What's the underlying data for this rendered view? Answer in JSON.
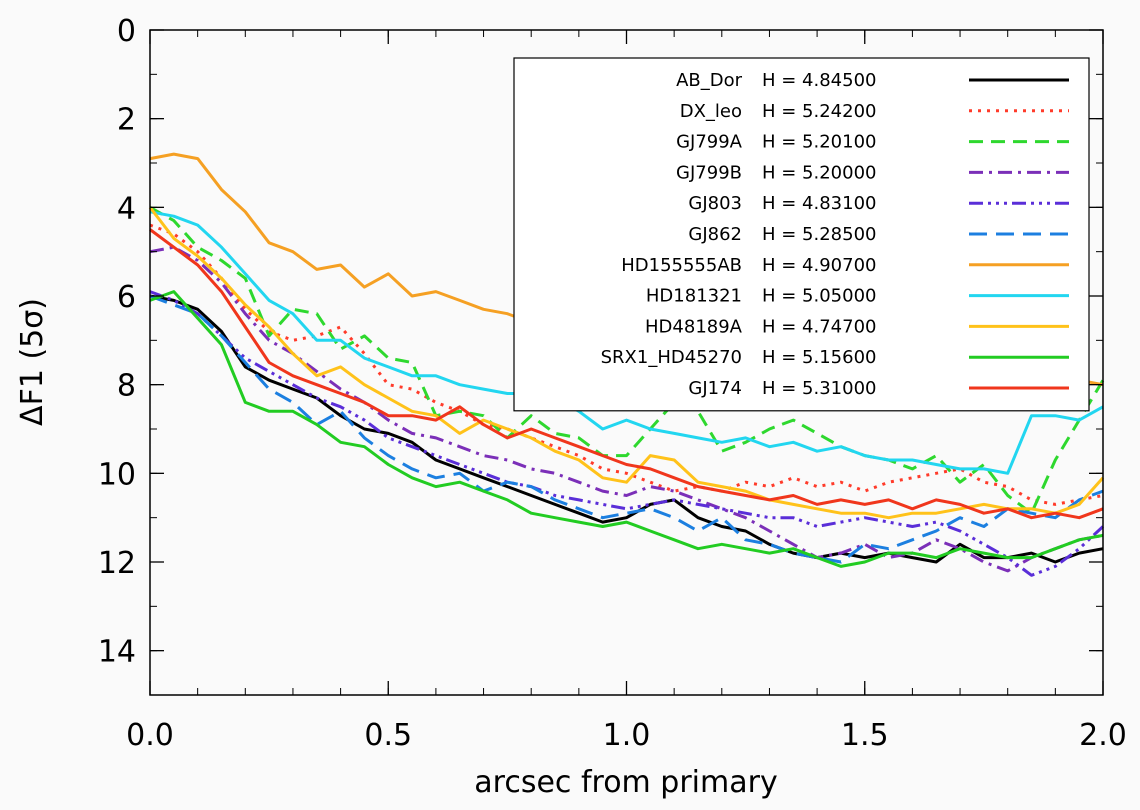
{
  "chart_data": {
    "type": "line",
    "xlabel": "arcsec from primary",
    "ylabel": "ΔF1 (5σ)",
    "xlim": [
      0.0,
      2.0
    ],
    "ylim": [
      15,
      0
    ],
    "y_inverted": true,
    "xticks": [
      "0.0",
      "0.5",
      "1.0",
      "1.5",
      "2.0"
    ],
    "yticks": [
      "0",
      "2",
      "4",
      "6",
      "8",
      "10",
      "12",
      "14"
    ],
    "legend_position": "top-right",
    "grid": false,
    "series": [
      {
        "name": "AB_Dor",
        "hmag": "H = 4.84500",
        "color": "#000000",
        "dash": "",
        "x": [
          0.0,
          0.05,
          0.1,
          0.15,
          0.2,
          0.25,
          0.3,
          0.35,
          0.4,
          0.45,
          0.5,
          0.55,
          0.6,
          0.65,
          0.7,
          0.75,
          0.8,
          0.85,
          0.9,
          0.95,
          1.0,
          1.05,
          1.1,
          1.15,
          1.2,
          1.25,
          1.3,
          1.35,
          1.4,
          1.45,
          1.5,
          1.55,
          1.6,
          1.65,
          1.7,
          1.75,
          1.8,
          1.85,
          1.9,
          1.95,
          2.0
        ],
        "y": [
          6.0,
          6.1,
          6.3,
          6.8,
          7.6,
          7.9,
          8.1,
          8.3,
          8.7,
          9.0,
          9.1,
          9.3,
          9.7,
          9.9,
          10.1,
          10.3,
          10.5,
          10.7,
          10.9,
          11.1,
          11.0,
          10.7,
          10.6,
          11.0,
          11.2,
          11.3,
          11.6,
          11.8,
          11.9,
          11.8,
          11.9,
          11.8,
          11.9,
          12.0,
          11.6,
          11.9,
          11.9,
          11.8,
          12.0,
          11.8,
          11.7
        ]
      },
      {
        "name": "DX_leo",
        "hmag": "H = 5.24200",
        "color": "#ff3b2a",
        "dash": "3,6",
        "x": [
          0.0,
          0.05,
          0.1,
          0.15,
          0.2,
          0.25,
          0.3,
          0.35,
          0.4,
          0.45,
          0.5,
          0.55,
          0.6,
          0.65,
          0.7,
          0.75,
          0.8,
          0.85,
          0.9,
          0.95,
          1.0,
          1.05,
          1.1,
          1.15,
          1.2,
          1.25,
          1.3,
          1.35,
          1.4,
          1.45,
          1.5,
          1.55,
          1.6,
          1.65,
          1.7,
          1.75,
          1.8,
          1.85,
          1.9,
          1.95,
          2.0
        ],
        "y": [
          4.4,
          4.6,
          5.0,
          5.6,
          6.3,
          6.8,
          7.0,
          6.9,
          6.7,
          7.3,
          8.0,
          8.1,
          8.4,
          8.6,
          8.9,
          9.0,
          9.2,
          9.4,
          9.6,
          9.9,
          10.0,
          10.2,
          10.4,
          10.3,
          10.4,
          10.2,
          10.3,
          10.1,
          10.3,
          10.2,
          10.4,
          10.2,
          10.1,
          10.0,
          9.9,
          10.2,
          10.3,
          10.6,
          10.7,
          10.6,
          10.5
        ]
      },
      {
        "name": "GJ799A",
        "hmag": "H = 5.20100",
        "color": "#2ed82e",
        "dash": "14,8",
        "x": [
          0.0,
          0.05,
          0.1,
          0.15,
          0.2,
          0.25,
          0.3,
          0.35,
          0.4,
          0.45,
          0.5,
          0.55,
          0.6,
          0.65,
          0.7,
          0.75,
          0.8,
          0.85,
          0.9,
          0.95,
          1.0,
          1.05,
          1.1,
          1.15,
          1.2,
          1.25,
          1.3,
          1.35,
          1.4,
          1.45,
          1.5,
          1.55,
          1.6,
          1.65,
          1.7,
          1.75,
          1.8,
          1.85,
          1.9,
          1.95,
          2.0
        ],
        "y": [
          4.0,
          4.3,
          4.9,
          5.2,
          5.6,
          6.9,
          6.3,
          6.4,
          7.2,
          6.9,
          7.4,
          7.5,
          8.7,
          8.6,
          8.7,
          9.2,
          8.7,
          9.1,
          9.2,
          9.6,
          9.6,
          9.0,
          8.4,
          8.6,
          9.5,
          9.3,
          9.0,
          8.8,
          9.1,
          9.4,
          9.6,
          9.7,
          9.9,
          9.6,
          10.2,
          9.8,
          10.5,
          10.9,
          9.7,
          8.8,
          7.9
        ]
      },
      {
        "name": "GJ799B",
        "hmag": "H = 5.20000",
        "color": "#7b2fb8",
        "dash": "14,6,3,6",
        "x": [
          0.0,
          0.05,
          0.1,
          0.15,
          0.2,
          0.25,
          0.3,
          0.35,
          0.4,
          0.45,
          0.5,
          0.55,
          0.6,
          0.65,
          0.7,
          0.75,
          0.8,
          0.85,
          0.9,
          0.95,
          1.0,
          1.05,
          1.1,
          1.15,
          1.2,
          1.25,
          1.3,
          1.35,
          1.4,
          1.45,
          1.5,
          1.55,
          1.6,
          1.65,
          1.7,
          1.75,
          1.8,
          1.85,
          1.9,
          1.95,
          2.0
        ],
        "y": [
          5.0,
          4.9,
          5.2,
          5.7,
          6.4,
          7.0,
          7.3,
          7.7,
          8.1,
          8.4,
          8.8,
          9.1,
          9.2,
          9.4,
          9.6,
          9.7,
          9.9,
          10.0,
          10.2,
          10.4,
          10.5,
          10.3,
          10.4,
          10.6,
          10.8,
          11.0,
          11.3,
          11.6,
          11.9,
          11.8,
          11.6,
          11.9,
          11.8,
          11.5,
          11.7,
          12.0,
          12.2,
          11.9,
          11.7,
          11.5,
          11.4
        ]
      },
      {
        "name": "GJ803",
        "hmag": "H = 4.83100",
        "color": "#5a2ed8",
        "dash": "14,5,3,5,3,5,3,5",
        "x": [
          0.0,
          0.05,
          0.1,
          0.15,
          0.2,
          0.25,
          0.3,
          0.35,
          0.4,
          0.45,
          0.5,
          0.55,
          0.6,
          0.65,
          0.7,
          0.75,
          0.8,
          0.85,
          0.9,
          0.95,
          1.0,
          1.05,
          1.1,
          1.15,
          1.2,
          1.25,
          1.3,
          1.35,
          1.4,
          1.45,
          1.5,
          1.55,
          1.6,
          1.65,
          1.7,
          1.75,
          1.8,
          1.85,
          1.9,
          1.95,
          2.0
        ],
        "y": [
          5.9,
          6.1,
          6.4,
          6.9,
          7.4,
          7.7,
          8.0,
          8.3,
          8.5,
          8.8,
          9.2,
          9.4,
          9.6,
          9.8,
          10.0,
          10.2,
          10.3,
          10.5,
          10.6,
          10.7,
          10.8,
          10.7,
          10.6,
          10.7,
          10.8,
          10.9,
          11.0,
          11.0,
          11.2,
          11.1,
          11.0,
          11.1,
          11.2,
          11.1,
          11.3,
          11.6,
          11.9,
          12.3,
          12.1,
          11.7,
          11.2
        ]
      },
      {
        "name": "GJ862",
        "hmag": "H = 5.28500",
        "color": "#1c7fe0",
        "dash": "18,9",
        "x": [
          0.0,
          0.05,
          0.1,
          0.15,
          0.2,
          0.25,
          0.3,
          0.35,
          0.4,
          0.45,
          0.5,
          0.55,
          0.6,
          0.65,
          0.7,
          0.75,
          0.8,
          0.85,
          0.9,
          0.95,
          1.0,
          1.05,
          1.1,
          1.15,
          1.2,
          1.25,
          1.3,
          1.35,
          1.4,
          1.45,
          1.5,
          1.55,
          1.6,
          1.65,
          1.7,
          1.75,
          1.8,
          1.85,
          1.9,
          1.95,
          2.0
        ],
        "y": [
          6.0,
          6.2,
          6.4,
          6.9,
          7.5,
          8.1,
          8.4,
          8.9,
          8.6,
          9.2,
          9.6,
          9.9,
          10.1,
          10.0,
          10.4,
          10.2,
          10.3,
          10.6,
          10.8,
          11.0,
          10.9,
          10.8,
          11.0,
          11.3,
          11.0,
          11.5,
          11.6,
          11.8,
          11.9,
          12.0,
          11.6,
          11.7,
          11.5,
          11.3,
          11.0,
          11.2,
          10.8,
          10.9,
          11.0,
          10.6,
          10.4
        ]
      },
      {
        "name": "HD155555AB",
        "hmag": "H = 4.90700",
        "color": "#f5a023",
        "dash": "",
        "x": [
          0.0,
          0.05,
          0.1,
          0.15,
          0.2,
          0.25,
          0.3,
          0.35,
          0.4,
          0.45,
          0.5,
          0.55,
          0.6,
          0.65,
          0.7,
          0.75,
          0.8,
          0.85,
          0.9,
          0.95,
          1.0,
          1.05,
          1.1,
          1.15,
          1.2,
          1.25,
          1.3,
          1.35,
          1.4,
          1.45,
          1.5,
          1.55,
          1.6,
          1.65,
          1.7,
          1.75,
          1.8,
          1.85,
          1.9,
          1.95,
          2.0
        ],
        "y": [
          2.9,
          2.8,
          2.9,
          3.6,
          4.1,
          4.8,
          5.0,
          5.4,
          5.3,
          5.8,
          5.5,
          6.0,
          5.9,
          6.1,
          6.3,
          6.4,
          6.6,
          6.8,
          6.7,
          7.0,
          7.2,
          7.3,
          7.2,
          7.3,
          7.5,
          7.6,
          7.7,
          7.8,
          7.5,
          7.1,
          7.0,
          6.9,
          6.8,
          6.9,
          6.7,
          7.3,
          7.6,
          7.9,
          8.2,
          7.9,
          8.0
        ]
      },
      {
        "name": "HD181321",
        "hmag": "H = 5.05000",
        "color": "#22d6f0",
        "dash": "",
        "x": [
          0.0,
          0.05,
          0.1,
          0.15,
          0.2,
          0.25,
          0.3,
          0.35,
          0.4,
          0.45,
          0.5,
          0.55,
          0.6,
          0.65,
          0.7,
          0.75,
          0.8,
          0.85,
          0.9,
          0.95,
          1.0,
          1.05,
          1.1,
          1.15,
          1.2,
          1.25,
          1.3,
          1.35,
          1.4,
          1.45,
          1.5,
          1.55,
          1.6,
          1.65,
          1.7,
          1.75,
          1.8,
          1.85,
          1.9,
          1.95,
          2.0
        ],
        "y": [
          4.1,
          4.2,
          4.4,
          4.9,
          5.5,
          6.1,
          6.4,
          7.0,
          7.0,
          7.4,
          7.6,
          7.8,
          7.8,
          8.0,
          8.1,
          8.2,
          8.2,
          8.3,
          8.6,
          9.0,
          8.8,
          9.0,
          9.1,
          9.2,
          9.3,
          9.2,
          9.4,
          9.3,
          9.5,
          9.4,
          9.6,
          9.7,
          9.7,
          9.8,
          9.9,
          9.9,
          10.0,
          8.7,
          8.7,
          8.8,
          8.5
        ]
      },
      {
        "name": "HD48189A",
        "hmag": "H = 4.74700",
        "color": "#ffc21a",
        "dash": "",
        "x": [
          0.0,
          0.05,
          0.1,
          0.15,
          0.2,
          0.25,
          0.3,
          0.35,
          0.4,
          0.45,
          0.5,
          0.55,
          0.6,
          0.65,
          0.7,
          0.75,
          0.8,
          0.85,
          0.9,
          0.95,
          1.0,
          1.05,
          1.1,
          1.15,
          1.2,
          1.25,
          1.3,
          1.35,
          1.4,
          1.45,
          1.5,
          1.55,
          1.6,
          1.65,
          1.7,
          1.75,
          1.8,
          1.85,
          1.9,
          1.95,
          2.0
        ],
        "y": [
          4.0,
          4.7,
          5.1,
          5.6,
          6.2,
          6.7,
          7.3,
          7.8,
          7.6,
          8.0,
          8.3,
          8.6,
          8.7,
          9.1,
          8.8,
          9.0,
          9.2,
          9.5,
          9.7,
          10.1,
          10.2,
          9.6,
          9.7,
          10.2,
          10.3,
          10.4,
          10.6,
          10.7,
          10.8,
          10.9,
          10.9,
          11.0,
          10.9,
          10.9,
          10.8,
          10.7,
          10.8,
          10.8,
          10.9,
          10.7,
          10.1
        ]
      },
      {
        "name": "SRX1_HD45270",
        "hmag": "H = 5.15600",
        "color": "#22cc22",
        "dash": "",
        "x": [
          0.0,
          0.05,
          0.1,
          0.15,
          0.2,
          0.25,
          0.3,
          0.35,
          0.4,
          0.45,
          0.5,
          0.55,
          0.6,
          0.65,
          0.7,
          0.75,
          0.8,
          0.85,
          0.9,
          0.95,
          1.0,
          1.05,
          1.1,
          1.15,
          1.2,
          1.25,
          1.3,
          1.35,
          1.4,
          1.45,
          1.5,
          1.55,
          1.6,
          1.65,
          1.7,
          1.75,
          1.8,
          1.85,
          1.9,
          1.95,
          2.0
        ],
        "y": [
          6.1,
          5.9,
          6.5,
          7.1,
          8.4,
          8.6,
          8.6,
          8.9,
          9.3,
          9.4,
          9.8,
          10.1,
          10.3,
          10.2,
          10.4,
          10.6,
          10.9,
          11.0,
          11.1,
          11.2,
          11.1,
          11.3,
          11.5,
          11.7,
          11.6,
          11.7,
          11.8,
          11.7,
          11.9,
          12.1,
          12.0,
          11.8,
          11.8,
          11.9,
          11.7,
          11.8,
          11.9,
          11.9,
          11.7,
          11.5,
          11.4
        ]
      },
      {
        "name": "GJ174",
        "hmag": "H = 5.31000",
        "color": "#f0361c",
        "dash": "",
        "x": [
          0.0,
          0.05,
          0.1,
          0.15,
          0.2,
          0.25,
          0.3,
          0.35,
          0.4,
          0.45,
          0.5,
          0.55,
          0.6,
          0.65,
          0.7,
          0.75,
          0.8,
          0.85,
          0.9,
          0.95,
          1.0,
          1.05,
          1.1,
          1.15,
          1.2,
          1.25,
          1.3,
          1.35,
          1.4,
          1.45,
          1.5,
          1.55,
          1.6,
          1.65,
          1.7,
          1.75,
          1.8,
          1.85,
          1.9,
          1.95,
          2.0
        ],
        "y": [
          4.5,
          4.9,
          5.3,
          5.9,
          6.7,
          7.5,
          7.8,
          8.0,
          8.2,
          8.4,
          8.7,
          8.7,
          8.8,
          8.5,
          8.9,
          9.2,
          9.0,
          9.2,
          9.4,
          9.6,
          9.8,
          9.9,
          10.1,
          10.3,
          10.4,
          10.5,
          10.6,
          10.5,
          10.7,
          10.6,
          10.7,
          10.6,
          10.8,
          10.6,
          10.7,
          10.9,
          10.8,
          11.0,
          10.9,
          11.0,
          10.8
        ]
      }
    ]
  }
}
